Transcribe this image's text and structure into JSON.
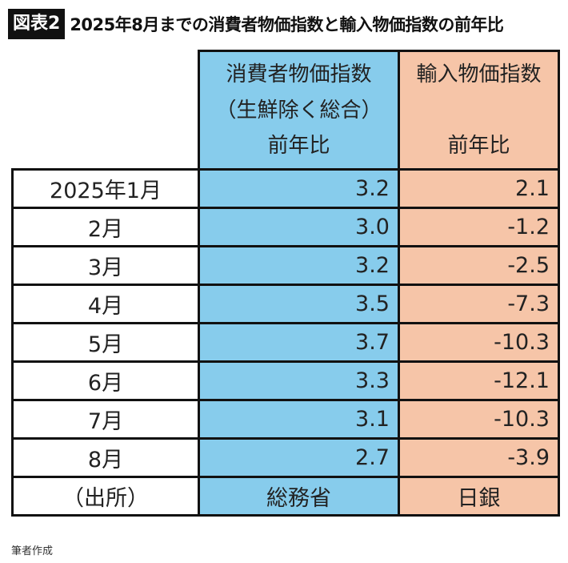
{
  "title": {
    "badge": "図表2",
    "text": "2025年8月までの消費者物価指数と輸入物価指数の前年比"
  },
  "colors": {
    "cpi_column": "#87ccec",
    "import_column": "#f6c5a8",
    "border": "#111111"
  },
  "table": {
    "headers": {
      "cpi": {
        "line1": "消費者物価指数",
        "line2": "（生鮮除く総合）",
        "line3": "前年比"
      },
      "import": {
        "line1": "輸入物価指数",
        "line2": "",
        "line3": "前年比"
      }
    },
    "rows": [
      {
        "month": "2025年1月",
        "cpi": "3.2",
        "import": "2.1"
      },
      {
        "month": "2月",
        "cpi": "3.0",
        "import": "-1.2"
      },
      {
        "month": "3月",
        "cpi": "3.2",
        "import": "-2.5"
      },
      {
        "month": "4月",
        "cpi": "3.5",
        "import": "-7.3"
      },
      {
        "month": "5月",
        "cpi": "3.7",
        "import": "-10.3"
      },
      {
        "month": "6月",
        "cpi": "3.3",
        "import": "-12.1"
      },
      {
        "month": "7月",
        "cpi": "3.1",
        "import": "-10.3"
      },
      {
        "month": "8月",
        "cpi": "2.7",
        "import": "-3.9"
      }
    ],
    "source_row": {
      "label": "（出所）",
      "cpi": "総務省",
      "import": "日銀"
    }
  },
  "footnote": "筆者作成"
}
